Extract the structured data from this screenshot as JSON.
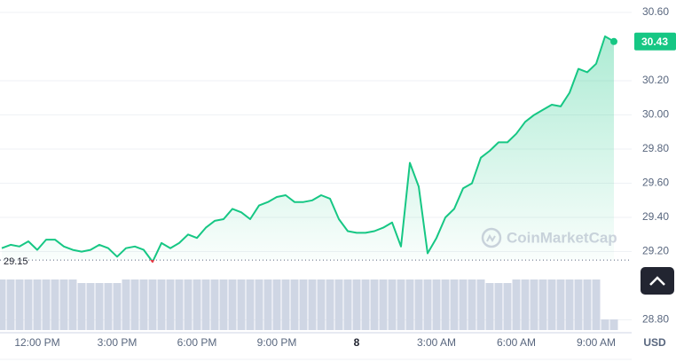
{
  "chart_data": {
    "type": "line",
    "color": "#16c784",
    "down_color": "#ea3943",
    "watermark": "CoinMarketCap",
    "currency": "USD",
    "baseline": 29.15,
    "xlim": [
      -0.2,
      71.0
    ],
    "xticks": [
      {
        "value": 4,
        "label": "12:00 PM"
      },
      {
        "value": 13,
        "label": "3:00 PM"
      },
      {
        "value": 22,
        "label": "6:00 PM"
      },
      {
        "value": 31,
        "label": "9:00 PM"
      },
      {
        "value": 40,
        "label": "8"
      },
      {
        "value": 49,
        "label": "3:00 AM"
      },
      {
        "value": 58,
        "label": "6:00 AM"
      },
      {
        "value": 67,
        "label": "9:00 AM"
      }
    ],
    "ylim": [
      28.725,
      30.673
    ],
    "yticks": [
      {
        "value": 28.8,
        "label": "28.80"
      },
      {
        "value": 29.2,
        "label": "29.20"
      },
      {
        "value": 29.4,
        "label": "29.40"
      },
      {
        "value": 29.6,
        "label": "29.60"
      },
      {
        "value": 29.8,
        "label": "29.80"
      },
      {
        "value": 30.0,
        "label": "30.00"
      },
      {
        "value": 30.2,
        "label": "30.20"
      },
      {
        "value": 30.6,
        "label": "30.60"
      }
    ],
    "grid": true,
    "values": [
      29.22,
      29.24,
      29.23,
      29.26,
      29.21,
      29.27,
      29.27,
      29.23,
      29.21,
      29.2,
      29.21,
      29.24,
      29.22,
      29.17,
      29.22,
      29.23,
      29.21,
      29.14,
      29.25,
      29.22,
      29.25,
      29.3,
      29.28,
      29.34,
      29.38,
      29.39,
      29.45,
      29.43,
      29.39,
      29.47,
      29.49,
      29.52,
      29.53,
      29.49,
      29.49,
      29.5,
      29.53,
      29.51,
      29.39,
      29.32,
      29.31,
      29.31,
      29.32,
      29.34,
      29.37,
      29.23,
      29.72,
      29.58,
      29.19,
      29.28,
      29.4,
      29.45,
      29.57,
      29.6,
      29.75,
      29.79,
      29.84,
      29.84,
      29.89,
      29.96,
      30.0,
      30.03,
      30.06,
      30.05,
      30.13,
      30.27,
      30.25,
      30.3,
      30.46,
      30.43
    ],
    "volume": {
      "color": "#cfd6e4",
      "lim": [
        0,
        60
      ],
      "values": [
        57,
        57,
        57,
        57,
        57,
        57,
        57,
        57,
        57,
        53,
        53,
        53,
        53,
        53,
        57,
        57,
        57,
        57,
        57,
        57,
        57,
        57,
        57,
        57,
        57,
        57,
        57,
        57,
        57,
        57,
        57,
        57,
        57,
        57,
        57,
        57,
        57,
        57,
        57,
        57,
        57,
        57,
        57,
        57,
        57,
        57,
        57,
        57,
        57,
        57,
        57,
        57,
        57,
        57,
        57,
        53,
        53,
        53,
        57,
        57,
        57,
        57,
        57,
        57,
        57,
        57,
        57,
        57,
        12,
        12
      ]
    }
  }
}
